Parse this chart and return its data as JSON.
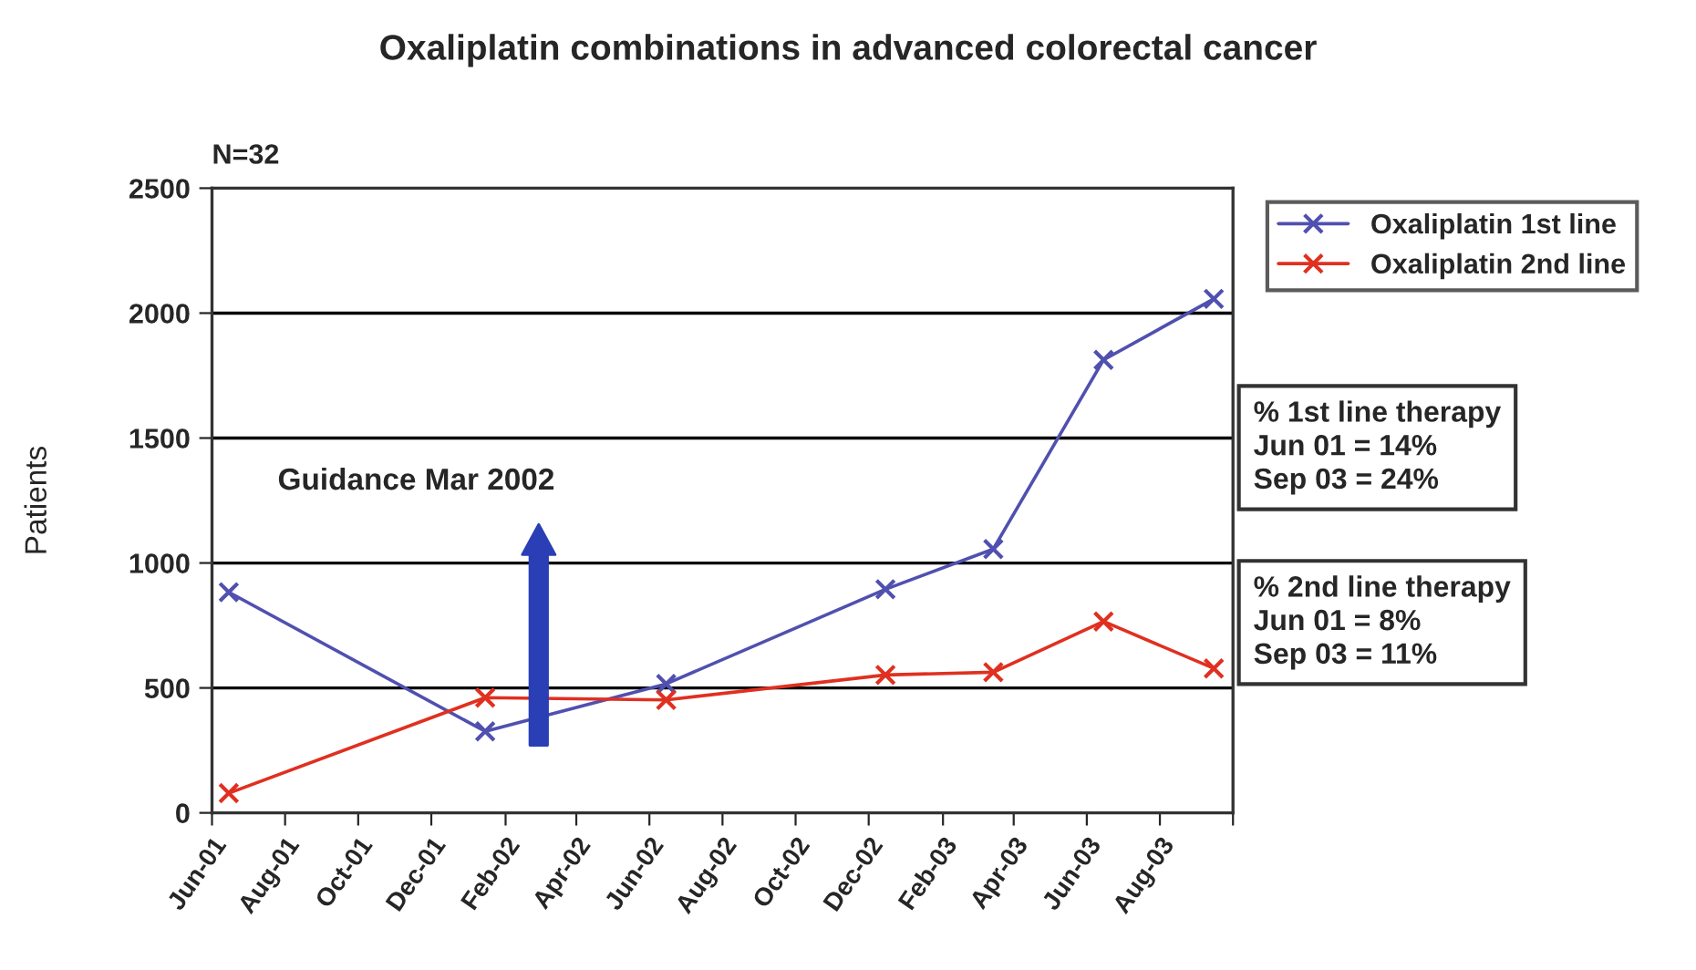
{
  "chart_data": {
    "type": "line",
    "title": "Oxaliplatin combinations in advanced colorectal cancer",
    "ylabel": "Patients",
    "x": [
      "2001-06-15",
      "2002-01-15",
      "2002-06-15",
      "2002-12-15",
      "2003-03-15",
      "2003-06-15",
      "2003-09-15"
    ],
    "series": [
      {
        "name": "Oxaliplatin 1st line",
        "color": "#5050b0",
        "values": [
          883,
          326,
          516,
          895,
          1056,
          1813,
          2057
        ]
      },
      {
        "name": "Oxaliplatin 2nd line",
        "color": "#e03020",
        "values": [
          79,
          461,
          452,
          552,
          563,
          766,
          578
        ]
      }
    ],
    "xlim": [
      "2001-06-01",
      "2003-10-01"
    ],
    "xticks": [
      {
        "value": "2001-06-01",
        "label": "Jun-01"
      },
      {
        "value": "2001-08-01",
        "label": "Aug-01"
      },
      {
        "value": "2001-10-01",
        "label": "Oct-01"
      },
      {
        "value": "2001-12-01",
        "label": "Dec-01"
      },
      {
        "value": "2002-02-01",
        "label": "Feb-02"
      },
      {
        "value": "2002-04-01",
        "label": "Apr-02"
      },
      {
        "value": "2002-06-01",
        "label": "Jun-02"
      },
      {
        "value": "2002-08-01",
        "label": "Aug-02"
      },
      {
        "value": "2002-10-01",
        "label": "Oct-02"
      },
      {
        "value": "2002-12-01",
        "label": "Dec-02"
      },
      {
        "value": "2003-02-01",
        "label": "Feb-03"
      },
      {
        "value": "2003-04-01",
        "label": "Apr-03"
      },
      {
        "value": "2003-06-01",
        "label": "Jun-03"
      },
      {
        "value": "2003-08-01",
        "label": "Aug-03"
      },
      {
        "value": "2003-10-01",
        "label": null
      }
    ],
    "ylim": [
      0,
      2500
    ],
    "yticks": [
      0,
      500,
      1000,
      1500,
      2000,
      2500
    ],
    "grid": "y",
    "legend": "top right",
    "marker": "cross",
    "line_style": "solid",
    "annotations": [
      "N=32",
      "Guidance Mar 2002",
      "% 1st line therapy\nJun 01 = 14%\nSep 03 = 24%",
      "% 2nd line therapy\nJun 01 = 8%\nSep 03 = 11%"
    ]
  }
}
